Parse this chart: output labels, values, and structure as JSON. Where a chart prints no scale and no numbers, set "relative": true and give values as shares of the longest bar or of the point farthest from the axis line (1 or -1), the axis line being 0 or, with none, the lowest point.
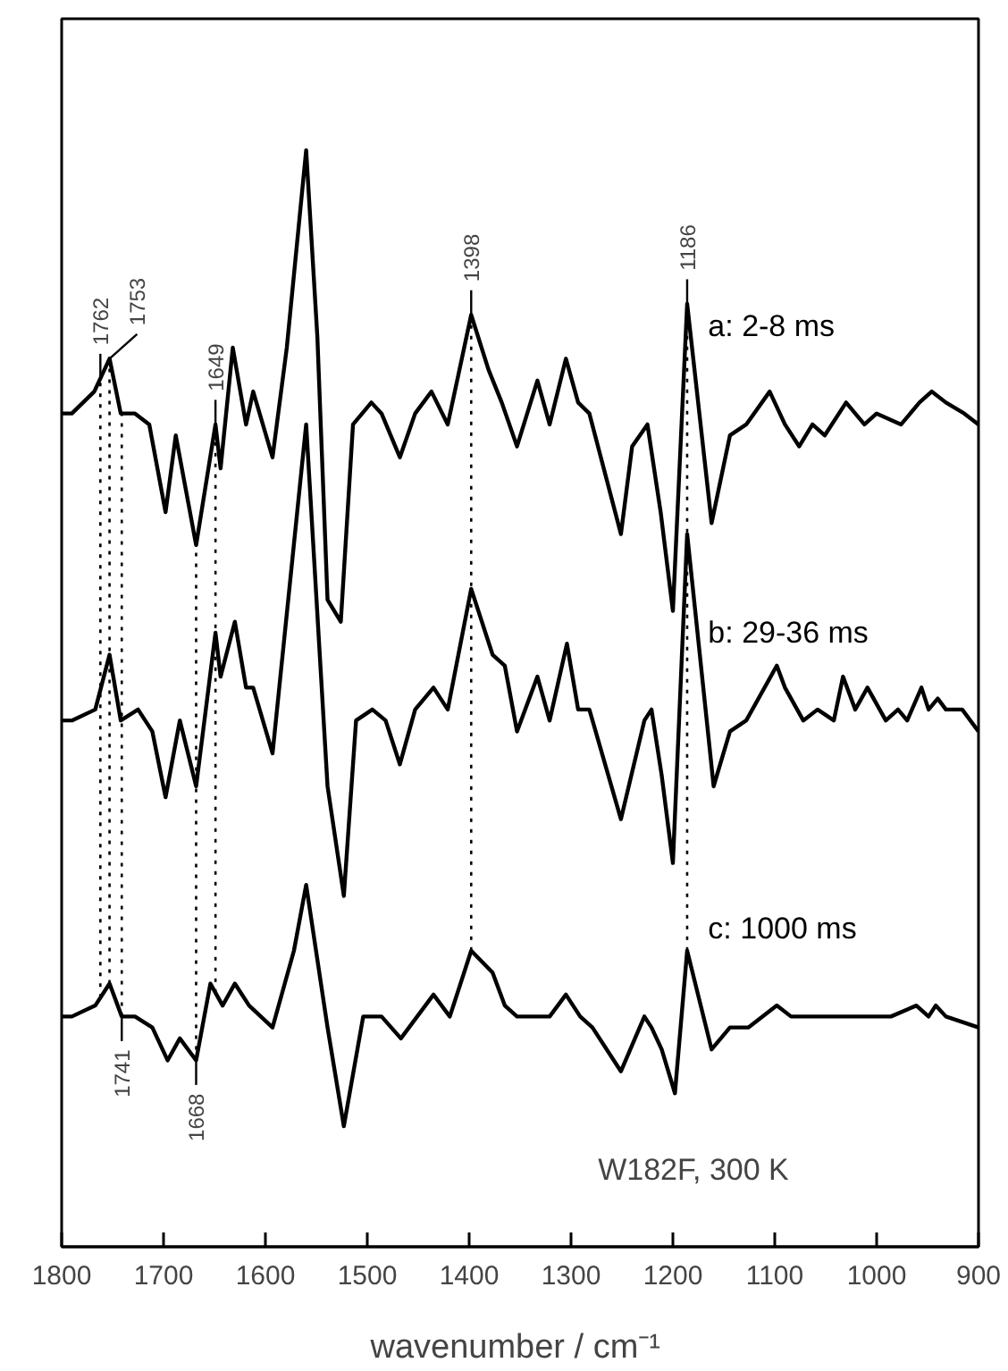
{
  "chart_data": {
    "type": "line",
    "relative": true,
    "xlabel": "wavenumber  / cm⁻¹",
    "xlim": [
      1800,
      900
    ],
    "xticks": [
      1800,
      1700,
      1600,
      1500,
      1400,
      1300,
      1200,
      1100,
      1000,
      900
    ],
    "tick_labels": "x",
    "grid": false,
    "marker": "none",
    "line_style": "solid",
    "series": [
      {
        "name": "a: 2-8 ms",
        "color": "#000000",
        "x": [
          1800,
          1790,
          1768,
          1753,
          1742,
          1728,
          1714,
          1698,
          1688,
          1668,
          1649,
          1644,
          1632,
          1619,
          1612,
          1593,
          1579,
          1560,
          1549,
          1539,
          1526,
          1514,
          1496,
          1486,
          1468,
          1453,
          1437,
          1421,
          1398,
          1381,
          1368,
          1353,
          1333,
          1321,
          1305,
          1293,
          1282,
          1251,
          1240,
          1225,
          1212,
          1200,
          1186,
          1162,
          1144,
          1128,
          1105,
          1090,
          1076,
          1063,
          1051,
          1030,
          1012,
          1000,
          976,
          958,
          946,
          932,
          914,
          900
        ],
        "values": [
          0.76,
          0.76,
          0.78,
          0.81,
          0.76,
          0.76,
          0.75,
          0.67,
          0.74,
          0.64,
          0.75,
          0.71,
          0.82,
          0.75,
          0.78,
          0.72,
          0.82,
          1.0,
          0.83,
          0.59,
          0.57,
          0.75,
          0.77,
          0.76,
          0.72,
          0.76,
          0.78,
          0.75,
          0.85,
          0.8,
          0.77,
          0.73,
          0.79,
          0.75,
          0.81,
          0.77,
          0.76,
          0.65,
          0.73,
          0.75,
          0.67,
          0.58,
          0.86,
          0.66,
          0.74,
          0.75,
          0.78,
          0.75,
          0.73,
          0.75,
          0.74,
          0.77,
          0.75,
          0.76,
          0.75,
          0.77,
          0.78,
          0.77,
          0.76,
          0.75
        ]
      },
      {
        "name": "b: 29-36 ms",
        "color": "#000000",
        "x": [
          1800,
          1790,
          1767,
          1753,
          1742,
          1725,
          1711,
          1698,
          1684,
          1668,
          1649,
          1644,
          1630,
          1619,
          1612,
          1593,
          1560,
          1539,
          1523,
          1511,
          1495,
          1482,
          1468,
          1453,
          1435,
          1421,
          1398,
          1377,
          1365,
          1353,
          1333,
          1321,
          1304,
          1293,
          1282,
          1251,
          1228,
          1221,
          1211,
          1200,
          1186,
          1160,
          1144,
          1128,
          1098,
          1090,
          1072,
          1058,
          1042,
          1033,
          1021,
          1009,
          991,
          979,
          970,
          956,
          949,
          940,
          932,
          916,
          900
        ],
        "values": [
          0.48,
          0.48,
          0.49,
          0.54,
          0.48,
          0.49,
          0.47,
          0.41,
          0.48,
          0.42,
          0.56,
          0.52,
          0.57,
          0.51,
          0.51,
          0.45,
          0.75,
          0.42,
          0.32,
          0.48,
          0.49,
          0.48,
          0.44,
          0.49,
          0.51,
          0.49,
          0.6,
          0.54,
          0.53,
          0.47,
          0.52,
          0.48,
          0.55,
          0.49,
          0.49,
          0.39,
          0.48,
          0.49,
          0.43,
          0.35,
          0.65,
          0.42,
          0.47,
          0.48,
          0.53,
          0.51,
          0.48,
          0.49,
          0.48,
          0.52,
          0.49,
          0.51,
          0.48,
          0.49,
          0.48,
          0.51,
          0.49,
          0.5,
          0.49,
          0.49,
          0.47
        ]
      },
      {
        "name": "c: 1000 ms",
        "color": "#000000",
        "x": [
          1800,
          1790,
          1767,
          1753,
          1741,
          1728,
          1711,
          1696,
          1684,
          1668,
          1654,
          1642,
          1630,
          1616,
          1593,
          1572,
          1560,
          1539,
          1523,
          1504,
          1486,
          1467,
          1451,
          1435,
          1419,
          1398,
          1377,
          1365,
          1353,
          1333,
          1321,
          1305,
          1291,
          1279,
          1251,
          1228,
          1221,
          1211,
          1198,
          1186,
          1162,
          1144,
          1126,
          1098,
          1084,
          1068,
          1033,
          1021,
          1003,
          986,
          961,
          949,
          942,
          932,
          900
        ],
        "values": [
          0.21,
          0.21,
          0.22,
          0.24,
          0.21,
          0.21,
          0.2,
          0.17,
          0.19,
          0.17,
          0.24,
          0.22,
          0.24,
          0.22,
          0.2,
          0.27,
          0.33,
          0.2,
          0.11,
          0.21,
          0.21,
          0.19,
          0.21,
          0.23,
          0.21,
          0.27,
          0.25,
          0.22,
          0.21,
          0.21,
          0.21,
          0.23,
          0.21,
          0.2,
          0.16,
          0.21,
          0.2,
          0.18,
          0.14,
          0.27,
          0.18,
          0.2,
          0.2,
          0.22,
          0.21,
          0.21,
          0.21,
          0.21,
          0.21,
          0.21,
          0.22,
          0.21,
          0.22,
          0.21,
          0.2
        ]
      }
    ],
    "ref_lines": [
      {
        "axis": "x",
        "value": 1762,
        "line_style": "dotted",
        "label": "1762"
      },
      {
        "axis": "x",
        "value": 1741,
        "line_style": "dotted",
        "label": "1741"
      },
      {
        "axis": "x",
        "value": 1753,
        "line_style": "dotted",
        "label": "1753"
      },
      {
        "axis": "x",
        "value": 1649,
        "line_style": "dotted",
        "label": "1649"
      },
      {
        "axis": "x",
        "value": 1668,
        "line_style": "dotted",
        "label": "1668"
      },
      {
        "axis": "x",
        "value": 1398,
        "line_style": "dotted",
        "label": "1398"
      },
      {
        "axis": "x",
        "value": 1186,
        "line_style": "dotted",
        "label": "1186"
      }
    ],
    "annotations": [
      "W182F, 300 K"
    ]
  }
}
